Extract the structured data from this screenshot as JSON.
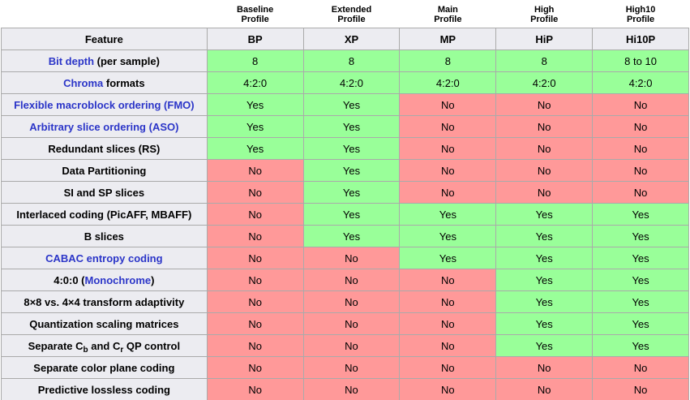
{
  "colors": {
    "yes": "#99FF99",
    "no": "#FF9999",
    "header_bg": "#ECECF1",
    "border": "#AAAAAA",
    "link": "#2B35C8"
  },
  "table": {
    "feature_header": "Feature",
    "columns": [
      {
        "line1": "Baseline",
        "line2": "Profile",
        "abbr": "BP"
      },
      {
        "line1": "Extended",
        "line2": "Profile",
        "abbr": "XP"
      },
      {
        "line1": "Main",
        "line2": "Profile",
        "abbr": "MP"
      },
      {
        "line1": "High",
        "line2": "Profile",
        "abbr": "HiP"
      },
      {
        "line1": "High10",
        "line2": "Profile",
        "abbr": "Hi10P"
      }
    ],
    "rows": [
      {
        "feature": [
          {
            "t": "Bit depth",
            "link": true
          },
          {
            "t": " (per sample)"
          }
        ],
        "cells": [
          {
            "v": "8",
            "s": "yes"
          },
          {
            "v": "8",
            "s": "yes"
          },
          {
            "v": "8",
            "s": "yes"
          },
          {
            "v": "8",
            "s": "yes"
          },
          {
            "v": "8 to 10",
            "s": "yes"
          }
        ]
      },
      {
        "feature": [
          {
            "t": "Chroma",
            "link": true
          },
          {
            "t": " formats"
          }
        ],
        "cells": [
          {
            "v": "4:2:0",
            "s": "yes"
          },
          {
            "v": "4:2:0",
            "s": "yes"
          },
          {
            "v": "4:2:0",
            "s": "yes"
          },
          {
            "v": "4:2:0",
            "s": "yes"
          },
          {
            "v": "4:2:0",
            "s": "yes"
          }
        ]
      },
      {
        "feature": [
          {
            "t": "Flexible macroblock ordering (FMO)",
            "link": true
          }
        ],
        "cells": [
          {
            "v": "Yes",
            "s": "yes"
          },
          {
            "v": "Yes",
            "s": "yes"
          },
          {
            "v": "No",
            "s": "no"
          },
          {
            "v": "No",
            "s": "no"
          },
          {
            "v": "No",
            "s": "no"
          }
        ]
      },
      {
        "feature": [
          {
            "t": "Arbitrary slice ordering (ASO)",
            "link": true
          }
        ],
        "cells": [
          {
            "v": "Yes",
            "s": "yes"
          },
          {
            "v": "Yes",
            "s": "yes"
          },
          {
            "v": "No",
            "s": "no"
          },
          {
            "v": "No",
            "s": "no"
          },
          {
            "v": "No",
            "s": "no"
          }
        ]
      },
      {
        "feature": [
          {
            "t": "Redundant slices (RS)"
          }
        ],
        "cells": [
          {
            "v": "Yes",
            "s": "yes"
          },
          {
            "v": "Yes",
            "s": "yes"
          },
          {
            "v": "No",
            "s": "no"
          },
          {
            "v": "No",
            "s": "no"
          },
          {
            "v": "No",
            "s": "no"
          }
        ]
      },
      {
        "feature": [
          {
            "t": "Data Partitioning"
          }
        ],
        "cells": [
          {
            "v": "No",
            "s": "no"
          },
          {
            "v": "Yes",
            "s": "yes"
          },
          {
            "v": "No",
            "s": "no"
          },
          {
            "v": "No",
            "s": "no"
          },
          {
            "v": "No",
            "s": "no"
          }
        ]
      },
      {
        "feature": [
          {
            "t": "SI and SP slices"
          }
        ],
        "cells": [
          {
            "v": "No",
            "s": "no"
          },
          {
            "v": "Yes",
            "s": "yes"
          },
          {
            "v": "No",
            "s": "no"
          },
          {
            "v": "No",
            "s": "no"
          },
          {
            "v": "No",
            "s": "no"
          }
        ]
      },
      {
        "feature": [
          {
            "t": "Interlaced coding (PicAFF, MBAFF)"
          }
        ],
        "cells": [
          {
            "v": "No",
            "s": "no"
          },
          {
            "v": "Yes",
            "s": "yes"
          },
          {
            "v": "Yes",
            "s": "yes"
          },
          {
            "v": "Yes",
            "s": "yes"
          },
          {
            "v": "Yes",
            "s": "yes"
          }
        ]
      },
      {
        "feature": [
          {
            "t": "B slices"
          }
        ],
        "cells": [
          {
            "v": "No",
            "s": "no"
          },
          {
            "v": "Yes",
            "s": "yes"
          },
          {
            "v": "Yes",
            "s": "yes"
          },
          {
            "v": "Yes",
            "s": "yes"
          },
          {
            "v": "Yes",
            "s": "yes"
          }
        ]
      },
      {
        "feature": [
          {
            "t": "CABAC entropy coding",
            "link": true
          }
        ],
        "cells": [
          {
            "v": "No",
            "s": "no"
          },
          {
            "v": "No",
            "s": "no"
          },
          {
            "v": "Yes",
            "s": "yes"
          },
          {
            "v": "Yes",
            "s": "yes"
          },
          {
            "v": "Yes",
            "s": "yes"
          }
        ]
      },
      {
        "feature": [
          {
            "t": "4:0:0 ("
          },
          {
            "t": "Monochrome",
            "link": true
          },
          {
            "t": ")"
          }
        ],
        "cells": [
          {
            "v": "No",
            "s": "no"
          },
          {
            "v": "No",
            "s": "no"
          },
          {
            "v": "No",
            "s": "no"
          },
          {
            "v": "Yes",
            "s": "yes"
          },
          {
            "v": "Yes",
            "s": "yes"
          }
        ]
      },
      {
        "feature": [
          {
            "t": "8×8 vs. 4×4 transform adaptivity"
          }
        ],
        "cells": [
          {
            "v": "No",
            "s": "no"
          },
          {
            "v": "No",
            "s": "no"
          },
          {
            "v": "No",
            "s": "no"
          },
          {
            "v": "Yes",
            "s": "yes"
          },
          {
            "v": "Yes",
            "s": "yes"
          }
        ]
      },
      {
        "feature": [
          {
            "t": "Quantization scaling matrices"
          }
        ],
        "cells": [
          {
            "v": "No",
            "s": "no"
          },
          {
            "v": "No",
            "s": "no"
          },
          {
            "v": "No",
            "s": "no"
          },
          {
            "v": "Yes",
            "s": "yes"
          },
          {
            "v": "Yes",
            "s": "yes"
          }
        ]
      },
      {
        "feature": [
          {
            "t": "Separate C"
          },
          {
            "t": "b",
            "sub": true
          },
          {
            "t": " and C"
          },
          {
            "t": "r",
            "sub": true
          },
          {
            "t": " QP control"
          }
        ],
        "cells": [
          {
            "v": "No",
            "s": "no"
          },
          {
            "v": "No",
            "s": "no"
          },
          {
            "v": "No",
            "s": "no"
          },
          {
            "v": "Yes",
            "s": "yes"
          },
          {
            "v": "Yes",
            "s": "yes"
          }
        ]
      },
      {
        "feature": [
          {
            "t": "Separate color plane coding"
          }
        ],
        "cells": [
          {
            "v": "No",
            "s": "no"
          },
          {
            "v": "No",
            "s": "no"
          },
          {
            "v": "No",
            "s": "no"
          },
          {
            "v": "No",
            "s": "no"
          },
          {
            "v": "No",
            "s": "no"
          }
        ]
      },
      {
        "feature": [
          {
            "t": "Predictive lossless coding"
          }
        ],
        "cells": [
          {
            "v": "No",
            "s": "no"
          },
          {
            "v": "No",
            "s": "no"
          },
          {
            "v": "No",
            "s": "no"
          },
          {
            "v": "No",
            "s": "no"
          },
          {
            "v": "No",
            "s": "no"
          }
        ]
      }
    ]
  },
  "chart_data": {
    "type": "table",
    "title": "",
    "column_headers": [
      "Feature",
      "BP",
      "XP",
      "MP",
      "HiP",
      "Hi10P"
    ],
    "column_full_names": [
      "Baseline Profile",
      "Extended Profile",
      "Main Profile",
      "High Profile",
      "High10 Profile"
    ],
    "rows": [
      [
        "Bit depth (per sample)",
        "8",
        "8",
        "8",
        "8",
        "8 to 10"
      ],
      [
        "Chroma formats",
        "4:2:0",
        "4:2:0",
        "4:2:0",
        "4:2:0",
        "4:2:0"
      ],
      [
        "Flexible macroblock ordering (FMO)",
        "Yes",
        "Yes",
        "No",
        "No",
        "No"
      ],
      [
        "Arbitrary slice ordering (ASO)",
        "Yes",
        "Yes",
        "No",
        "No",
        "No"
      ],
      [
        "Redundant slices (RS)",
        "Yes",
        "Yes",
        "No",
        "No",
        "No"
      ],
      [
        "Data Partitioning",
        "No",
        "Yes",
        "No",
        "No",
        "No"
      ],
      [
        "SI and SP slices",
        "No",
        "Yes",
        "No",
        "No",
        "No"
      ],
      [
        "Interlaced coding (PicAFF, MBAFF)",
        "No",
        "Yes",
        "Yes",
        "Yes",
        "Yes"
      ],
      [
        "B slices",
        "No",
        "Yes",
        "Yes",
        "Yes",
        "Yes"
      ],
      [
        "CABAC entropy coding",
        "No",
        "No",
        "Yes",
        "Yes",
        "Yes"
      ],
      [
        "4:0:0 (Monochrome)",
        "No",
        "No",
        "No",
        "Yes",
        "Yes"
      ],
      [
        "8×8 vs. 4×4 transform adaptivity",
        "No",
        "No",
        "No",
        "Yes",
        "Yes"
      ],
      [
        "Quantization scaling matrices",
        "No",
        "No",
        "No",
        "Yes",
        "Yes"
      ],
      [
        "Separate Cb and Cr QP control",
        "No",
        "No",
        "No",
        "Yes",
        "Yes"
      ],
      [
        "Separate color plane coding",
        "No",
        "No",
        "No",
        "No",
        "No"
      ],
      [
        "Predictive lossless coding",
        "No",
        "No",
        "No",
        "No",
        "No"
      ]
    ],
    "cell_color_coding": {
      "green": "#99FF99",
      "red": "#FF9999"
    },
    "layout": {
      "grid": true,
      "legend": "none"
    }
  }
}
